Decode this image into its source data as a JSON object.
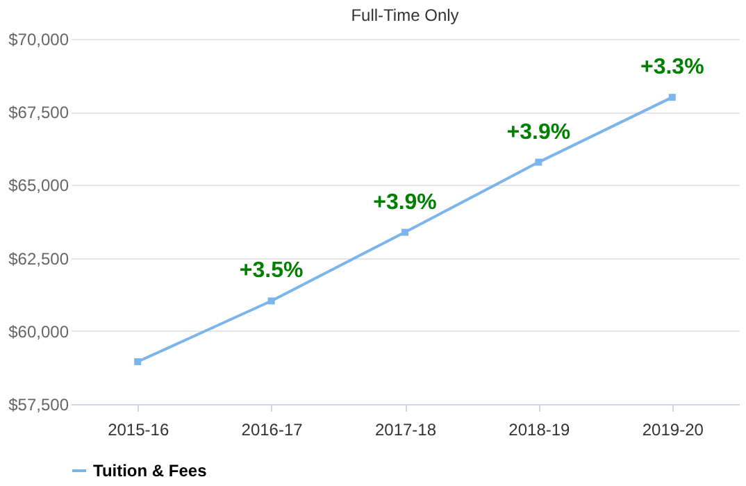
{
  "chart_data": {
    "type": "line",
    "title": "Full-Time Only",
    "categories": [
      "2015-16",
      "2016-17",
      "2017-18",
      "2018-19",
      "2019-20"
    ],
    "series": [
      {
        "name": "Tuition & Fees",
        "color": "#7cb5ec",
        "values": [
          58950,
          61030,
          63380,
          65780,
          68000
        ]
      }
    ],
    "ylim": [
      57500,
      70000
    ],
    "yticks": [
      {
        "value": 57500,
        "label": "$57,500"
      },
      {
        "value": 60000,
        "label": "$60,000"
      },
      {
        "value": 62500,
        "label": "$62,500"
      },
      {
        "value": 65000,
        "label": "$65,000"
      },
      {
        "value": 67500,
        "label": "$67,500"
      },
      {
        "value": 70000,
        "label": "$70,000"
      }
    ],
    "annotations": [
      {
        "text": "+3.5%",
        "x": "2016-17",
        "y": 61030
      },
      {
        "text": "+3.9%",
        "x": "2017-18",
        "y": 63380
      },
      {
        "text": "+3.9%",
        "x": "2018-19",
        "y": 65780
      },
      {
        "text": "+3.3%",
        "x": "2019-20",
        "y": 68000
      }
    ],
    "grid": "y",
    "legend": "bottom",
    "marker": "square",
    "line_style": "solid"
  }
}
